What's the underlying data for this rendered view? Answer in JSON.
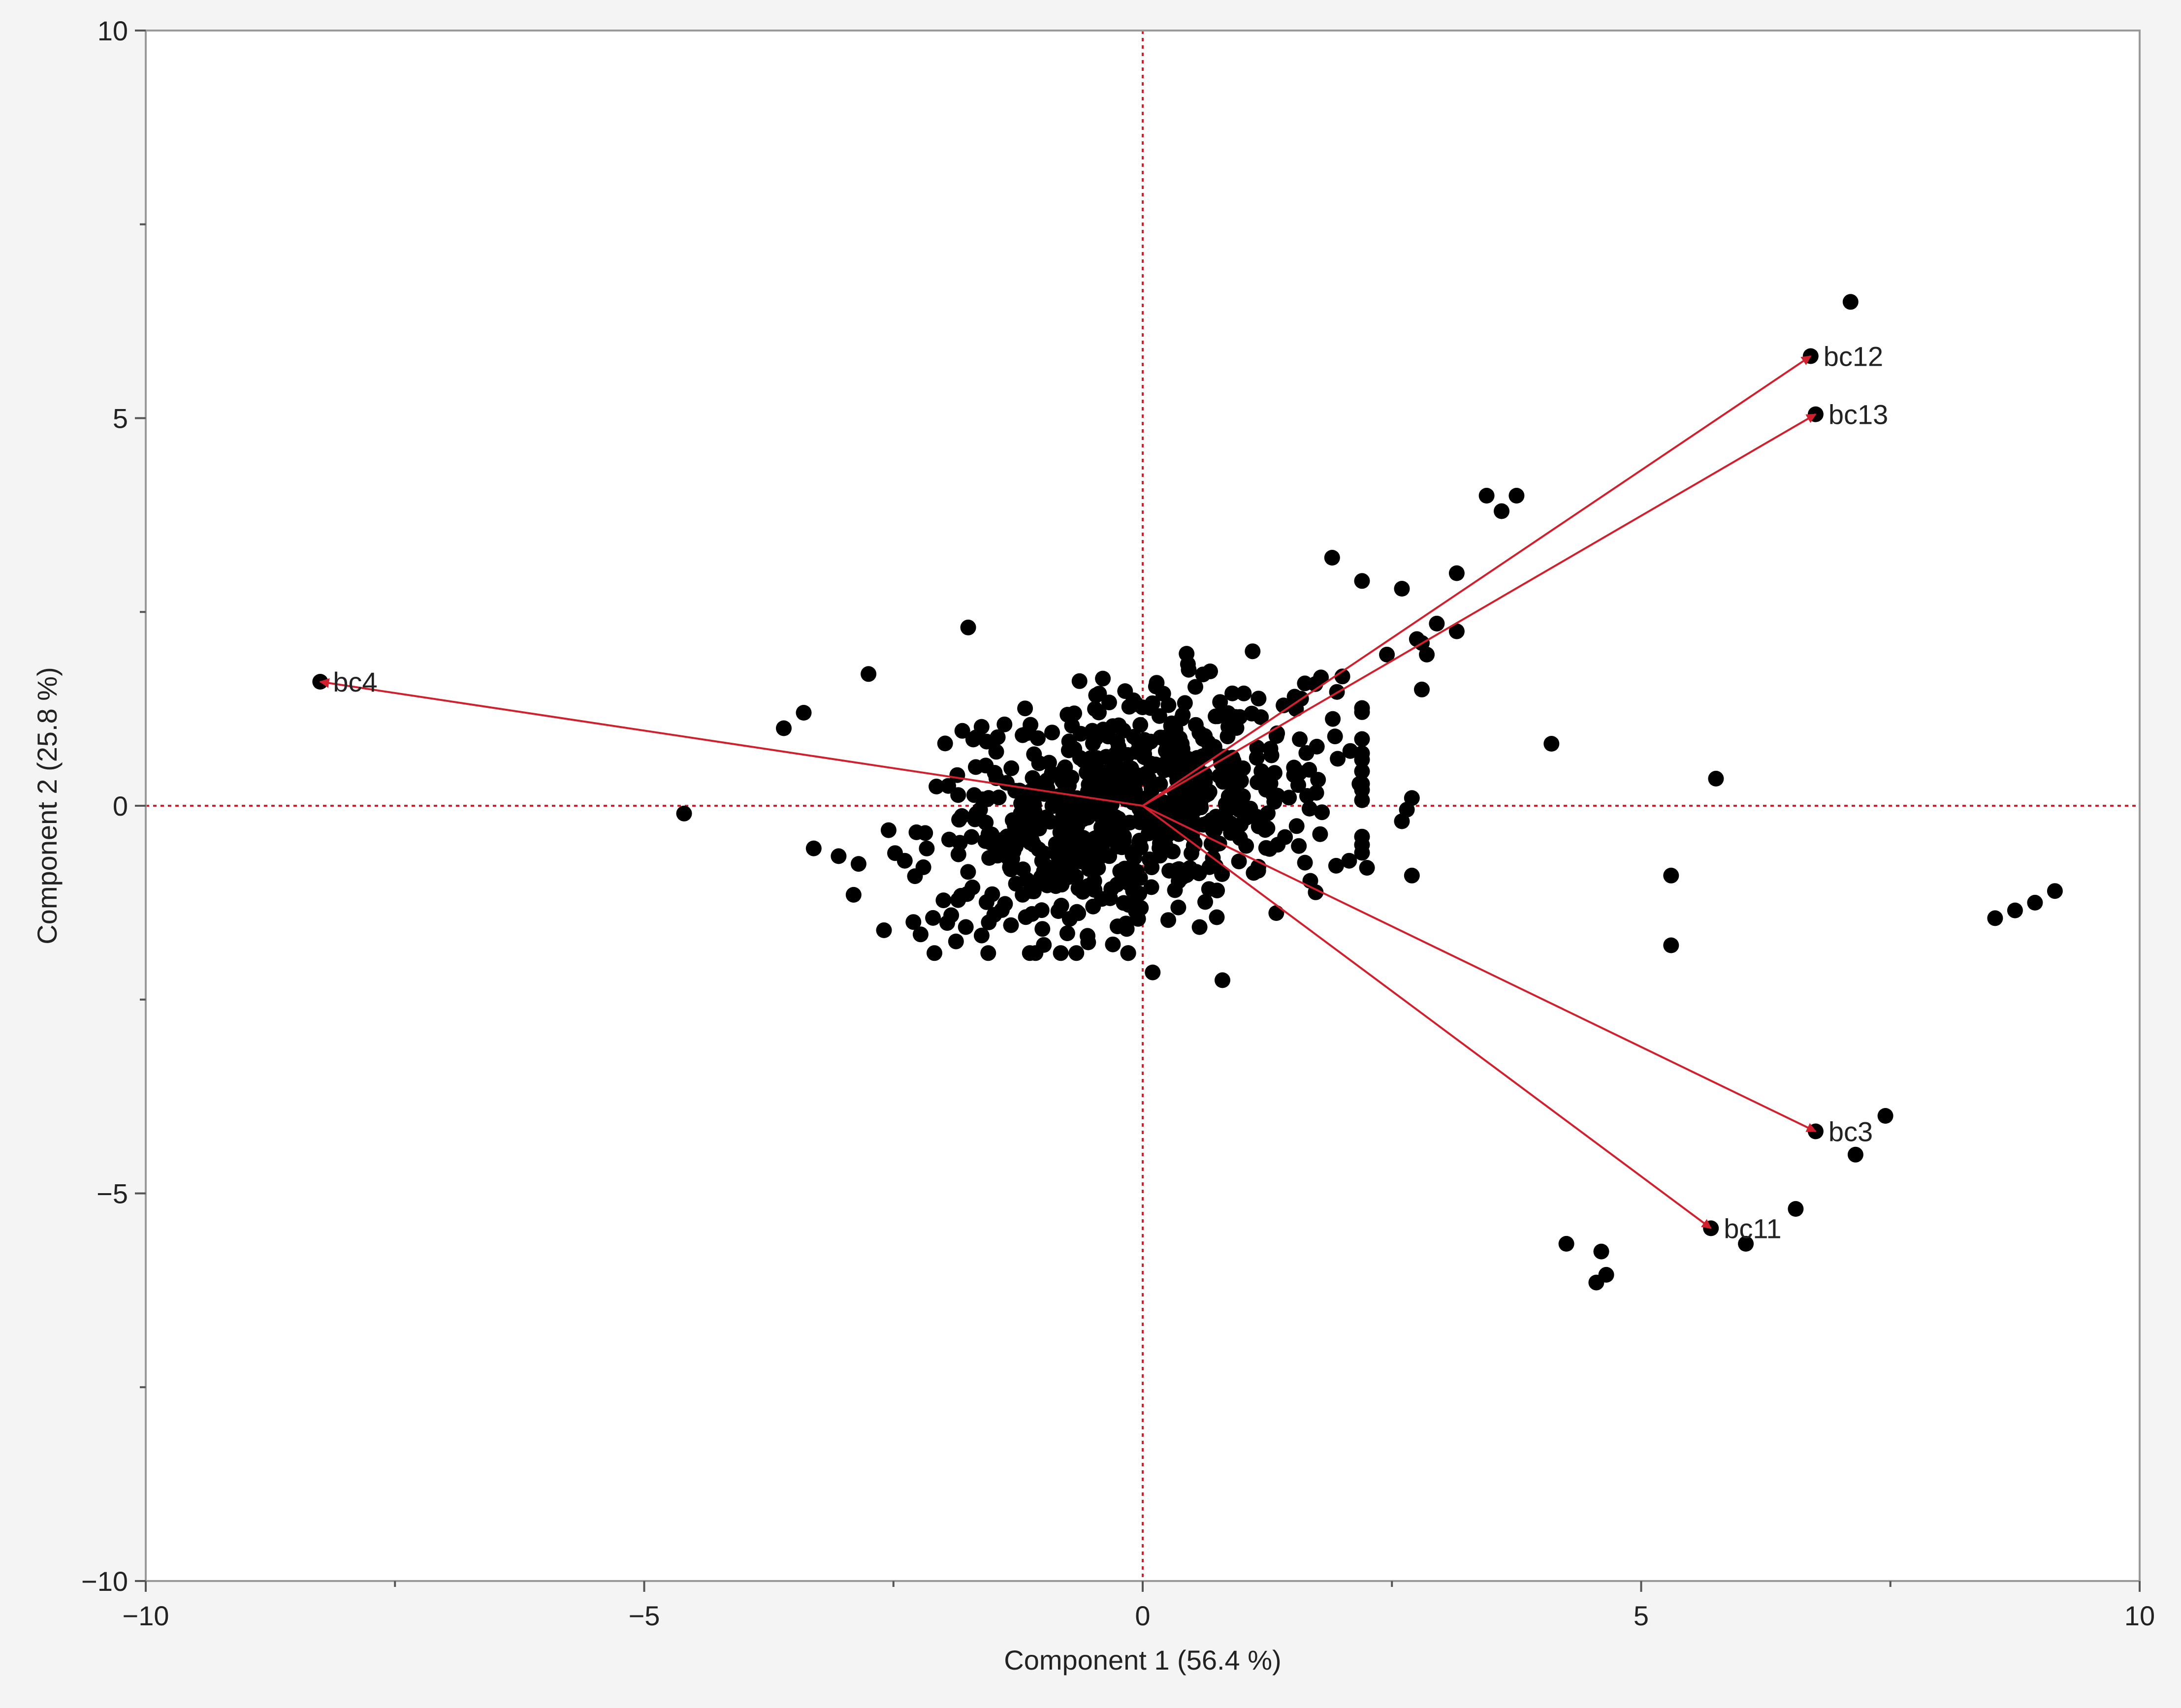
{
  "chart_data": {
    "type": "scatter",
    "subtype": "biplot",
    "title": "",
    "xlabel": "Component 1  (56.4 %)",
    "ylabel": "Component 2  (25.8 %)",
    "xlim": [
      -10,
      10
    ],
    "ylim": [
      -10,
      10
    ],
    "xticks": [
      {
        "value": -10,
        "label": "−10"
      },
      {
        "value": -5,
        "label": "−5"
      },
      {
        "value": 0,
        "label": "0"
      },
      {
        "value": 5,
        "label": "5"
      },
      {
        "value": 10,
        "label": "10"
      }
    ],
    "yticks": [
      {
        "value": -10,
        "label": "−10"
      },
      {
        "value": -5,
        "label": "−5"
      },
      {
        "value": 0,
        "label": "0"
      },
      {
        "value": 5,
        "label": "5"
      },
      {
        "value": 10,
        "label": "10"
      }
    ],
    "minor_step": 2.5,
    "reference_lines": {
      "x": 0,
      "y": 0,
      "style": "dotted",
      "color": "#d0202e"
    },
    "grid": false,
    "colors": {
      "points": "#000000",
      "vectors": "#d0202e",
      "frame": "#9a9a9a",
      "background": "#f4f4f4"
    },
    "loadings": [
      {
        "name": "bc12",
        "x": 6.7,
        "y": 5.8
      },
      {
        "name": "bc13",
        "x": 6.75,
        "y": 5.05
      },
      {
        "name": "bc4",
        "x": -8.25,
        "y": 1.6
      },
      {
        "name": "bc3",
        "x": 6.75,
        "y": -4.2
      },
      {
        "name": "bc11",
        "x": 5.7,
        "y": -5.45
      }
    ],
    "outlier_points": [
      [
        7.1,
        6.5
      ],
      [
        6.7,
        5.8
      ],
      [
        6.75,
        5.05
      ],
      [
        3.45,
        4.0
      ],
      [
        3.6,
        3.8
      ],
      [
        3.75,
        4.0
      ],
      [
        -8.25,
        1.6
      ],
      [
        -4.6,
        -0.1
      ],
      [
        4.1,
        0.8
      ],
      [
        5.75,
        0.35
      ],
      [
        5.3,
        -0.9
      ],
      [
        5.3,
        -1.8
      ],
      [
        8.55,
        -1.45
      ],
      [
        8.75,
        -1.35
      ],
      [
        8.95,
        -1.25
      ],
      [
        9.15,
        -1.1
      ],
      [
        6.75,
        -4.2
      ],
      [
        7.45,
        -4.0
      ],
      [
        7.15,
        -4.5
      ],
      [
        6.55,
        -5.2
      ],
      [
        5.7,
        -5.45
      ],
      [
        6.05,
        -5.65
      ],
      [
        4.25,
        -5.65
      ],
      [
        4.6,
        -5.75
      ],
      [
        4.65,
        -6.05
      ],
      [
        4.55,
        -6.15
      ],
      [
        1.9,
        3.2
      ],
      [
        2.2,
        2.9
      ],
      [
        2.6,
        2.8
      ],
      [
        3.15,
        3.0
      ],
      [
        2.95,
        2.35
      ],
      [
        3.15,
        2.25
      ],
      [
        2.8,
        2.1
      ],
      [
        2.75,
        2.15
      ],
      [
        2.45,
        1.95
      ],
      [
        2.85,
        1.95
      ],
      [
        2.8,
        1.5
      ],
      [
        2.65,
        -0.05
      ],
      [
        2.7,
        0.1
      ],
      [
        2.6,
        -0.2
      ],
      [
        2.7,
        -0.9
      ],
      [
        2.25,
        -0.8
      ],
      [
        -3.6,
        1.0
      ],
      [
        -3.4,
        1.2
      ],
      [
        -2.75,
        1.7
      ],
      [
        -3.3,
        -0.55
      ],
      [
        -3.05,
        -0.65
      ],
      [
        -2.85,
        -0.75
      ],
      [
        -2.3,
        -1.5
      ],
      [
        -1.75,
        2.3
      ],
      [
        0.1,
        -2.15
      ],
      [
        0.8,
        -2.25
      ]
    ],
    "cloud": {
      "n": 720,
      "center": [
        -0.1,
        -0.05
      ],
      "sd": [
        1.0,
        0.75
      ],
      "x_range": [
        -2.9,
        2.2
      ],
      "y_range": [
        -1.9,
        2.0
      ],
      "lean": 0.22,
      "seed": 7
    }
  }
}
